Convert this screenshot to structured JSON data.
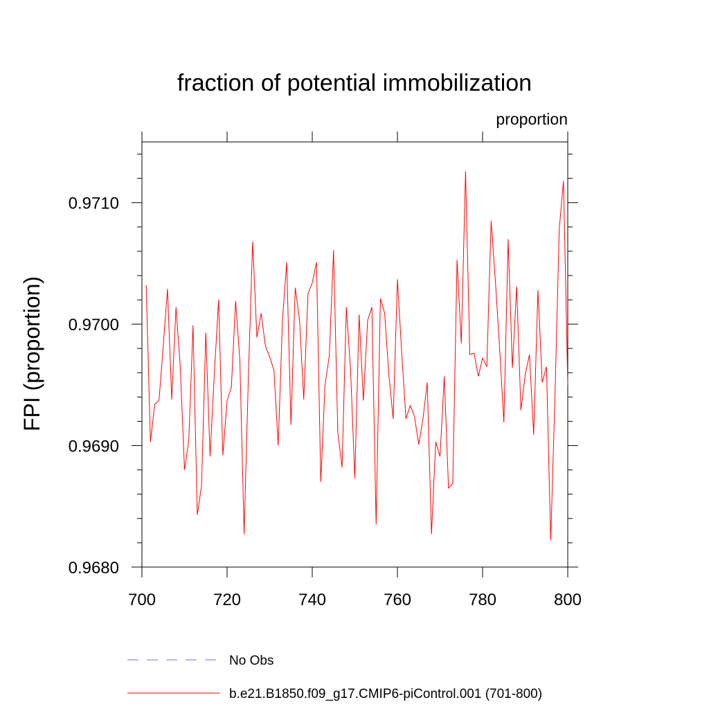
{
  "chart_data": {
    "type": "line",
    "title": "fraction of potential immobilization",
    "units_label": "proportion",
    "xlabel": "",
    "ylabel": "FPI  (proportion)",
    "xlim": [
      700,
      800
    ],
    "ylim": [
      0.968,
      0.9715
    ],
    "x_ticks": [
      700,
      720,
      740,
      760,
      780,
      800
    ],
    "x_tick_labels": [
      "700",
      "720",
      "740",
      "760",
      "780",
      "800"
    ],
    "y_ticks": [
      0.968,
      0.969,
      0.97,
      0.971
    ],
    "y_tick_labels": [
      "0.9680",
      "0.9690",
      "0.9700",
      "0.9710"
    ],
    "legend": [
      {
        "label": "No Obs",
        "color": "#7b68c8",
        "style": "dashed"
      },
      {
        "label": "b.e21.B1850.f09_g17.CMIP6-piControl.001 (701-800)",
        "color": "#ff0000",
        "style": "solid"
      }
    ],
    "series": [
      {
        "name": "b.e21.B1850.f09_g17.CMIP6-piControl.001 (701-800)",
        "color": "#ff0000",
        "x_start": 701,
        "values": [
          0.97032,
          0.96903,
          0.96934,
          0.96937,
          0.96982,
          0.97029,
          0.96938,
          0.97014,
          0.96965,
          0.9688,
          0.96904,
          0.96999,
          0.96843,
          0.96867,
          0.96993,
          0.96891,
          0.96959,
          0.9702,
          0.96892,
          0.96937,
          0.96948,
          0.97019,
          0.9697,
          0.96827,
          0.96957,
          0.97068,
          0.96989,
          0.97009,
          0.96982,
          0.96973,
          0.96962,
          0.969,
          0.97003,
          0.97051,
          0.96917,
          0.9703,
          0.97004,
          0.96938,
          0.97025,
          0.97034,
          0.97051,
          0.9687,
          0.9695,
          0.96974,
          0.97061,
          0.96911,
          0.96882,
          0.97014,
          0.96962,
          0.96873,
          0.97008,
          0.96937,
          0.97003,
          0.97014,
          0.96835,
          0.97021,
          0.97009,
          0.96958,
          0.96922,
          0.97037,
          0.96977,
          0.96922,
          0.96933,
          0.96924,
          0.96901,
          0.96922,
          0.96952,
          0.96827,
          0.96903,
          0.96891,
          0.96957,
          0.96865,
          0.96869,
          0.97053,
          0.96984,
          0.97126,
          0.96975,
          0.96976,
          0.96957,
          0.96972,
          0.96965,
          0.97085,
          0.97036,
          0.9698,
          0.96919,
          0.9707,
          0.96964,
          0.97031,
          0.96929,
          0.96958,
          0.96975,
          0.96909,
          0.97028,
          0.96952,
          0.96965,
          0.96822,
          0.96941,
          0.97078,
          0.97118,
          0.9695
        ]
      }
    ]
  }
}
